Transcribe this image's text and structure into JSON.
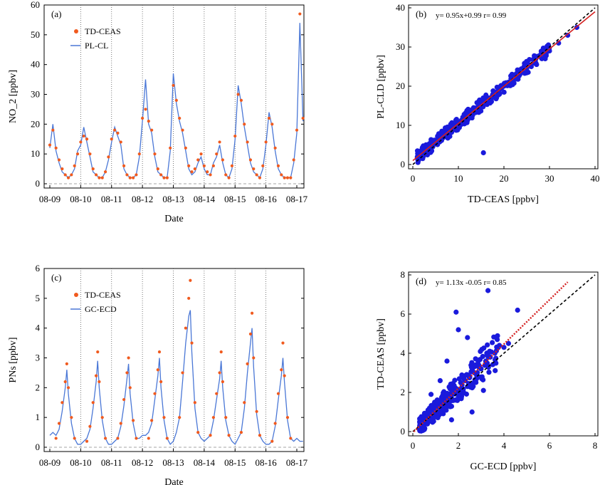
{
  "chart_data": [
    {
      "panel": "(a)",
      "type": "line",
      "xlabel": "Date",
      "ylabel": "NO_2 [ppbv]",
      "ylim": [
        0,
        60
      ],
      "yticks": [
        0,
        10,
        20,
        30,
        40,
        50,
        60
      ],
      "xticks": [
        "08-09",
        "08-10",
        "08-11",
        "08-12",
        "08-13",
        "08-14",
        "08-15",
        "08-16",
        "08-17"
      ],
      "grid": "vertical dotted at each day",
      "reference_line": {
        "y": 0,
        "style": "dashed"
      },
      "legend": {
        "placement": "top-left",
        "entries": [
          "TD-CEAS",
          "PL-CL"
        ]
      },
      "series": [
        {
          "name": "TD-CEAS",
          "marker": "dot",
          "color": "#f05a1e",
          "x_days": [
            0.0,
            0.1,
            0.2,
            0.3,
            0.4,
            0.5,
            0.6,
            0.7,
            0.8,
            0.9,
            1.0,
            1.1,
            1.2,
            1.3,
            1.4,
            1.5,
            1.6,
            1.7,
            1.8,
            1.9,
            2.0,
            2.1,
            2.2,
            2.3,
            2.4,
            2.5,
            2.6,
            2.7,
            2.8,
            2.9,
            3.0,
            3.1,
            3.2,
            3.3,
            3.4,
            3.5,
            3.6,
            3.7,
            3.8,
            3.9,
            4.0,
            4.1,
            4.2,
            4.3,
            4.4,
            4.5,
            4.6,
            4.7,
            4.8,
            4.9,
            5.0,
            5.1,
            5.2,
            5.3,
            5.4,
            5.5,
            5.6,
            5.7,
            5.8,
            5.9,
            6.0,
            6.1,
            6.2,
            6.3,
            6.4,
            6.5,
            6.6,
            6.7,
            6.8,
            6.9,
            7.0,
            7.1,
            7.2,
            7.3,
            7.4,
            7.5,
            7.6,
            7.7,
            7.8,
            7.9,
            8.0,
            8.1,
            8.2
          ],
          "values": [
            13,
            18,
            12,
            8,
            5,
            3,
            2,
            3,
            6,
            10,
            14,
            16,
            15,
            10,
            5,
            3,
            2,
            2,
            4,
            9,
            15,
            18,
            17,
            14,
            6,
            3,
            2,
            2,
            3,
            10,
            22,
            25,
            21,
            18,
            10,
            5,
            3,
            2,
            2,
            12,
            33,
            28,
            22,
            18,
            12,
            6,
            4,
            5,
            8,
            10,
            6,
            4,
            3,
            6,
            10,
            14,
            8,
            3,
            2,
            6,
            16,
            30,
            28,
            20,
            14,
            8,
            5,
            3,
            2,
            6,
            14,
            22,
            20,
            12,
            6,
            3,
            2,
            2,
            2,
            8,
            18,
            57,
            22
          ]
        },
        {
          "name": "PL-CL",
          "marker": "line",
          "color": "#4a77d6",
          "x_days": [
            0.0,
            0.1,
            0.2,
            0.3,
            0.4,
            0.5,
            0.6,
            0.7,
            0.8,
            0.9,
            1.0,
            1.1,
            1.2,
            1.3,
            1.4,
            1.5,
            1.6,
            1.7,
            1.8,
            1.9,
            2.0,
            2.1,
            2.2,
            2.3,
            2.4,
            2.5,
            2.6,
            2.7,
            2.8,
            2.9,
            3.0,
            3.1,
            3.2,
            3.3,
            3.4,
            3.5,
            3.6,
            3.7,
            3.8,
            3.9,
            4.0,
            4.1,
            4.2,
            4.3,
            4.4,
            4.5,
            4.6,
            4.7,
            4.8,
            4.9,
            5.0,
            5.1,
            5.2,
            5.3,
            5.4,
            5.5,
            5.6,
            5.7,
            5.8,
            5.9,
            6.0,
            6.1,
            6.2,
            6.3,
            6.4,
            6.5,
            6.6,
            6.7,
            6.8,
            6.9,
            7.0,
            7.1,
            7.2,
            7.3,
            7.4,
            7.5,
            7.6,
            7.7,
            7.8,
            7.9,
            8.0,
            8.1,
            8.2
          ],
          "values": [
            12,
            20,
            11,
            7,
            4,
            3,
            2,
            3,
            5,
            11,
            13,
            19,
            14,
            9,
            4,
            3,
            2,
            2,
            4,
            8,
            14,
            19,
            16,
            13,
            5,
            3,
            2,
            2,
            3,
            9,
            21,
            35,
            20,
            17,
            9,
            4,
            3,
            2,
            2,
            11,
            37,
            27,
            21,
            17,
            11,
            5,
            3,
            4,
            7,
            9,
            5,
            3,
            3,
            7,
            9,
            13,
            7,
            3,
            2,
            5,
            15,
            33,
            27,
            19,
            13,
            7,
            4,
            3,
            2,
            5,
            13,
            24,
            19,
            11,
            5,
            3,
            2,
            2,
            2,
            7,
            17,
            54,
            21
          ]
        }
      ]
    },
    {
      "panel": "(b)",
      "type": "scatter",
      "xlabel": "TD-CEAS [ppbv]",
      "ylabel": "PL-CLD [ppbv]",
      "xlim": [
        0,
        40
      ],
      "ylim": [
        0,
        40
      ],
      "xticks": [
        0,
        10,
        20,
        30,
        40
      ],
      "yticks": [
        0,
        10,
        20,
        30,
        40
      ],
      "annotation": {
        "fit": "y= 0.95x+0.99",
        "r": "r= 0.99"
      },
      "fit_line": {
        "slope": 0.95,
        "intercept": 0.99,
        "color": "#d42020",
        "style": "solid"
      },
      "one_to_one_line": {
        "color": "#000000",
        "style": "dashed"
      },
      "points": {
        "color": "#1a1adc",
        "x": [
          1,
          2,
          2.5,
          3,
          3.5,
          4,
          4.5,
          5,
          5.5,
          6,
          6.5,
          7,
          7.5,
          8,
          8.5,
          9,
          9.5,
          10,
          10.5,
          11,
          11.5,
          12,
          12.5,
          13,
          13.5,
          14,
          14.5,
          15,
          15.5,
          16,
          16.5,
          17,
          17.5,
          18,
          18.5,
          19,
          19.5,
          20,
          21,
          22,
          23,
          24,
          25,
          26,
          27,
          28,
          29,
          30,
          32,
          34,
          36,
          15.5
        ],
        "y": [
          2,
          2.5,
          3.5,
          3.5,
          4,
          4.8,
          5,
          5.5,
          6,
          6.5,
          7,
          7.2,
          8,
          8.5,
          9,
          9.2,
          10,
          10.5,
          10.8,
          11.5,
          12,
          12,
          13,
          13.5,
          13.8,
          14.5,
          15,
          15,
          15.5,
          16,
          17,
          17,
          17.8,
          18,
          18.5,
          19,
          19.5,
          20,
          21,
          21.5,
          22.5,
          24,
          24.5,
          25,
          27,
          27.5,
          28.5,
          29,
          31,
          33,
          35,
          3
        ]
      }
    },
    {
      "panel": "(c)",
      "type": "line",
      "xlabel": "Date",
      "ylabel": "PNs [ppbv]",
      "ylim": [
        0,
        6
      ],
      "yticks": [
        0,
        1,
        2,
        3,
        4,
        5,
        6
      ],
      "xticks": [
        "08-09",
        "08-10",
        "08-11",
        "08-12",
        "08-13",
        "08-14",
        "08-15",
        "08-16",
        "08-17"
      ],
      "grid": "vertical dotted at each day",
      "reference_line": {
        "y": 0,
        "style": "dashed"
      },
      "legend": {
        "placement": "top-left",
        "entries": [
          "TD-CEAS",
          "GC-ECD"
        ]
      },
      "series": [
        {
          "name": "TD-CEAS",
          "marker": "dot",
          "color": "#f05a1e",
          "x_days": [
            0.2,
            0.3,
            0.4,
            0.5,
            0.55,
            0.6,
            0.7,
            0.8,
            1.2,
            1.3,
            1.4,
            1.5,
            1.55,
            1.6,
            1.7,
            1.8,
            2.2,
            2.3,
            2.4,
            2.5,
            2.55,
            2.6,
            2.7,
            2.8,
            3.2,
            3.3,
            3.4,
            3.5,
            3.55,
            3.6,
            3.7,
            3.8,
            4.2,
            4.3,
            4.4,
            4.5,
            4.55,
            4.6,
            4.7,
            4.8,
            5.2,
            5.3,
            5.4,
            5.5,
            5.55,
            5.6,
            5.7,
            5.8,
            6.2,
            6.3,
            6.4,
            6.5,
            6.55,
            6.6,
            6.7,
            6.8,
            7.2,
            7.3,
            7.4,
            7.5,
            7.55,
            7.6,
            7.7,
            7.8
          ],
          "values": [
            0.3,
            0.8,
            1.5,
            2.2,
            2.8,
            2.0,
            1.0,
            0.3,
            0.2,
            0.7,
            1.5,
            2.4,
            3.2,
            2.2,
            1.0,
            0.3,
            0.3,
            0.8,
            1.6,
            2.5,
            3.0,
            2.0,
            0.9,
            0.3,
            0.3,
            0.9,
            1.8,
            2.6,
            3.2,
            2.2,
            1.0,
            0.3,
            1.0,
            2.5,
            4.0,
            5.0,
            5.6,
            3.5,
            1.5,
            0.5,
            0.4,
            1.0,
            1.8,
            2.5,
            3.2,
            2.2,
            1.0,
            0.4,
            0.5,
            1.5,
            2.8,
            3.8,
            4.5,
            3.0,
            1.2,
            0.4,
            0.2,
            0.8,
            1.8,
            2.6,
            3.5,
            2.4,
            1.0,
            0.3
          ]
        },
        {
          "name": "GC-ECD",
          "marker": "line",
          "color": "#4a77d6",
          "x_days": [
            0.0,
            0.1,
            0.2,
            0.3,
            0.4,
            0.5,
            0.55,
            0.6,
            0.7,
            0.8,
            0.9,
            1.0,
            1.1,
            1.2,
            1.3,
            1.4,
            1.5,
            1.55,
            1.6,
            1.7,
            1.8,
            1.9,
            2.0,
            2.1,
            2.2,
            2.3,
            2.4,
            2.5,
            2.55,
            2.6,
            2.7,
            2.8,
            2.9,
            3.0,
            3.1,
            3.2,
            3.3,
            3.4,
            3.5,
            3.55,
            3.6,
            3.7,
            3.8,
            3.9,
            4.0,
            4.1,
            4.2,
            4.3,
            4.4,
            4.5,
            4.55,
            4.6,
            4.7,
            4.8,
            4.9,
            5.0,
            5.1,
            5.2,
            5.3,
            5.4,
            5.5,
            5.55,
            5.6,
            5.7,
            5.8,
            5.9,
            6.0,
            6.1,
            6.2,
            6.3,
            6.4,
            6.5,
            6.55,
            6.6,
            6.7,
            6.8,
            6.9,
            7.0,
            7.1,
            7.2,
            7.3,
            7.4,
            7.5,
            7.55,
            7.6,
            7.7,
            7.8,
            7.9,
            8.0,
            8.1,
            8.2
          ],
          "values": [
            0.4,
            0.5,
            0.4,
            0.6,
            1.2,
            2.0,
            2.6,
            1.8,
            0.8,
            0.3,
            0.1,
            0.1,
            0.2,
            0.3,
            0.6,
            1.3,
            2.2,
            2.9,
            2.0,
            0.9,
            0.3,
            0.1,
            0.1,
            0.2,
            0.3,
            0.7,
            1.4,
            2.3,
            2.8,
            1.8,
            0.8,
            0.3,
            0.3,
            0.4,
            0.4,
            0.5,
            0.8,
            1.6,
            2.4,
            3.0,
            2.0,
            0.9,
            0.3,
            0.1,
            0.2,
            0.5,
            1.0,
            2.2,
            3.5,
            4.4,
            4.6,
            3.2,
            1.3,
            0.5,
            0.3,
            0.2,
            0.3,
            0.4,
            0.9,
            1.6,
            2.3,
            2.9,
            2.0,
            0.9,
            0.4,
            0.2,
            0.1,
            0.3,
            0.5,
            1.3,
            2.5,
            3.5,
            4.0,
            2.7,
            1.1,
            0.4,
            0.2,
            0.1,
            0.1,
            0.2,
            0.7,
            1.6,
            2.4,
            3.0,
            2.2,
            0.9,
            0.3,
            0.2,
            0.3,
            0.2,
            0.2
          ]
        }
      ]
    },
    {
      "panel": "(d)",
      "type": "scatter",
      "xlabel": "GC-ECD [ppbv]",
      "ylabel": "TD-CEAS [ppbv]",
      "xlim": [
        0,
        8
      ],
      "ylim": [
        0,
        8
      ],
      "xticks": [
        0,
        2,
        4,
        6,
        8
      ],
      "yticks": [
        0,
        2,
        4,
        6,
        8
      ],
      "annotation": {
        "fit": "y= 1.13x -0.05",
        "r": "r= 0.85"
      },
      "fit_line": {
        "slope": 1.13,
        "intercept": -0.05,
        "color": "#d42020",
        "style": "dotted",
        "xmax": 6.8
      },
      "one_to_one_line": {
        "color": "#000000",
        "style": "dashed"
      },
      "points": {
        "color": "#1a1adc",
        "x": [
          0.3,
          0.4,
          0.5,
          0.6,
          0.7,
          0.8,
          0.9,
          1.0,
          1.1,
          1.2,
          1.3,
          1.4,
          1.5,
          1.6,
          1.7,
          1.8,
          1.9,
          2.0,
          2.1,
          2.2,
          2.3,
          2.4,
          2.5,
          2.6,
          2.7,
          2.8,
          2.9,
          3.0,
          3.2,
          3.4,
          3.6,
          3.8,
          4.0,
          4.2,
          4.6,
          1.9,
          2.4,
          3.3,
          2.0,
          1.5,
          2.8,
          1.2,
          0.8,
          2.6,
          3.1,
          1.7
        ],
        "y": [
          0.1,
          0.5,
          0.4,
          0.8,
          0.6,
          1.0,
          0.9,
          1.2,
          0.8,
          1.4,
          1.1,
          1.5,
          1.8,
          1.3,
          2.0,
          1.6,
          2.2,
          1.9,
          2.5,
          2.0,
          2.6,
          2.3,
          2.8,
          2.4,
          3.0,
          2.7,
          3.3,
          3.2,
          3.6,
          3.8,
          4.0,
          4.4,
          4.3,
          4.5,
          6.2,
          6.1,
          4.8,
          7.2,
          5.2,
          3.6,
          3.4,
          2.6,
          1.9,
          1.0,
          2.1,
          0.6
        ]
      }
    }
  ]
}
